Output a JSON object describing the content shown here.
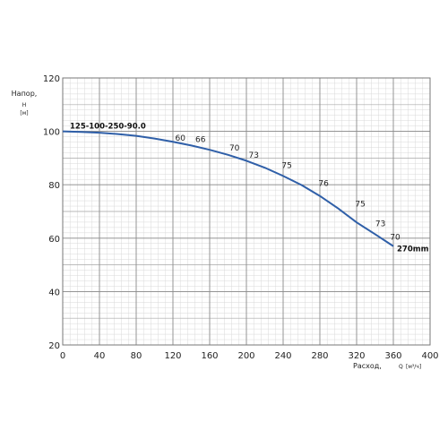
{
  "chart_data": {
    "type": "line",
    "title": "",
    "xlabel": "Расход,",
    "xlabel_symbol": "Q",
    "xlabel_unit": "[м³/ч]",
    "ylabel": "Напор,",
    "ylabel_symbol": "Н",
    "ylabel_unit": "[м]",
    "xlim": [
      0,
      400
    ],
    "ylim": [
      20,
      120
    ],
    "x_ticks": [
      0,
      40,
      80,
      120,
      160,
      200,
      240,
      280,
      320,
      360,
      400
    ],
    "y_ticks": [
      20,
      40,
      60,
      80,
      100,
      120
    ],
    "grid": true,
    "curve_color": "#2f5fa8",
    "series": [
      {
        "name": "125-100-250-90.0",
        "end_label": "270mm",
        "x": [
          0,
          20,
          40,
          60,
          80,
          100,
          120,
          140,
          160,
          180,
          200,
          220,
          240,
          260,
          280,
          300,
          320,
          340,
          360
        ],
        "y": [
          100,
          99.8,
          99.5,
          99.0,
          98.3,
          97.3,
          96.1,
          94.7,
          93.1,
          91.2,
          89.0,
          86.4,
          83.3,
          79.9,
          75.8,
          71.1,
          65.9,
          61.5,
          57.0
        ]
      }
    ],
    "efficiency_labels": [
      {
        "text": "60",
        "x": 128,
        "y": 96.5
      },
      {
        "text": "66",
        "x": 150,
        "y": 96.0
      },
      {
        "text": "70",
        "x": 187,
        "y": 92.8
      },
      {
        "text": "73",
        "x": 208,
        "y": 90.2
      },
      {
        "text": "75",
        "x": 244,
        "y": 86.3
      },
      {
        "text": "76",
        "x": 284,
        "y": 79.5
      },
      {
        "text": "75",
        "x": 324,
        "y": 71.8
      },
      {
        "text": "73",
        "x": 346,
        "y": 64.5
      },
      {
        "text": "70",
        "x": 362,
        "y": 59.5
      }
    ]
  }
}
